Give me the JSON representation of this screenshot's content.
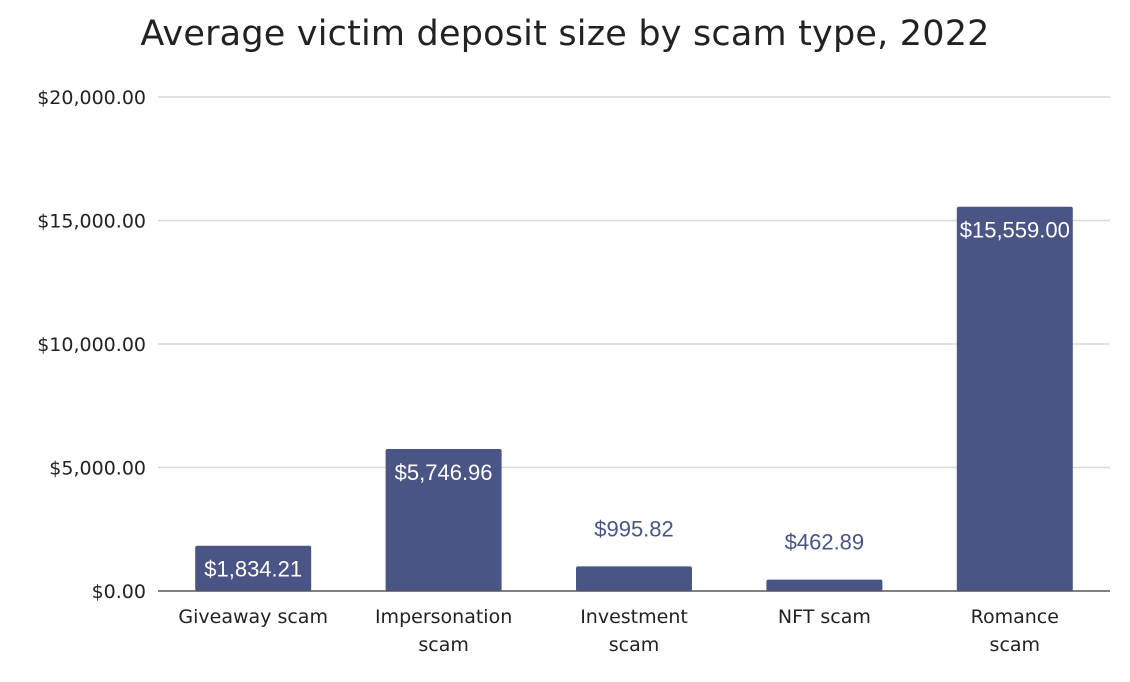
{
  "chart_data": {
    "type": "bar",
    "title": "Average victim deposit size by scam type, 2022",
    "xlabel": "",
    "ylabel": "",
    "categories": [
      [
        "Giveaway scam"
      ],
      [
        "Impersonation",
        "scam"
      ],
      [
        "Investment",
        "scam"
      ],
      [
        "NFT scam"
      ],
      [
        "Romance",
        "scam"
      ]
    ],
    "values": [
      1834.21,
      5746.96,
      995.82,
      462.89,
      15559.0
    ],
    "data_labels": [
      "$1,834.21",
      "$5,746.96",
      "$995.82",
      "$462.89",
      "$15,559.00"
    ],
    "ylim": [
      0,
      20000
    ],
    "yticks": [
      0,
      5000,
      10000,
      15000,
      20000
    ],
    "ytick_labels": [
      "$0.00",
      "$5,000.00",
      "$10,000.00",
      "$15,000.00",
      "$20,000.00"
    ],
    "grid": true,
    "legend": "none",
    "bar_color": "#4a5586",
    "label_inside_color": "#ffffff",
    "label_outside_color": "#4a5586",
    "gridline_color": "#d9d9d9",
    "axis_color": "#555555"
  }
}
